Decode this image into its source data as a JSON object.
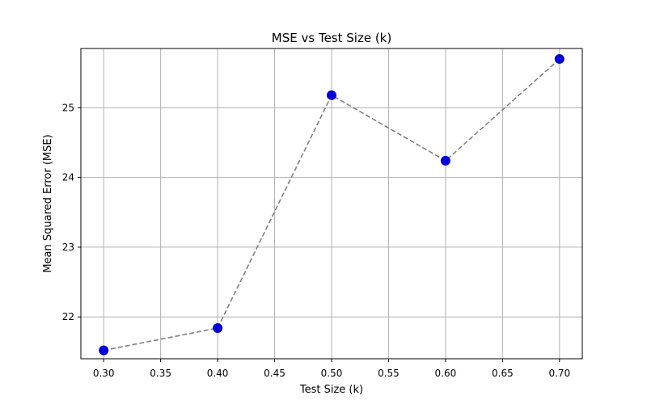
{
  "chart_data": {
    "type": "scatter",
    "title": "MSE vs Test Size (k)",
    "xlabel": "Test Size (k)",
    "ylabel": "Mean Squared Error (MSE)",
    "xlim": [
      0.28,
      0.72
    ],
    "ylim": [
      21.4,
      25.85
    ],
    "xticks": [
      0.3,
      0.35,
      0.4,
      0.45,
      0.5,
      0.55,
      0.6,
      0.65,
      0.7
    ],
    "xtick_labels": [
      "0.30",
      "0.35",
      "0.40",
      "0.45",
      "0.50",
      "0.55",
      "0.60",
      "0.65",
      "0.70"
    ],
    "yticks": [
      22,
      23,
      24,
      25
    ],
    "ytick_labels": [
      "22",
      "23",
      "24",
      "25"
    ],
    "grid": true,
    "series": [
      {
        "x": [
          0.3,
          0.4,
          0.5,
          0.6,
          0.7
        ],
        "y": [
          21.52,
          21.84,
          25.18,
          24.24,
          25.7
        ],
        "marker_color": "#0000dd",
        "line_color": "#808080",
        "line_style": "dashed"
      }
    ]
  }
}
